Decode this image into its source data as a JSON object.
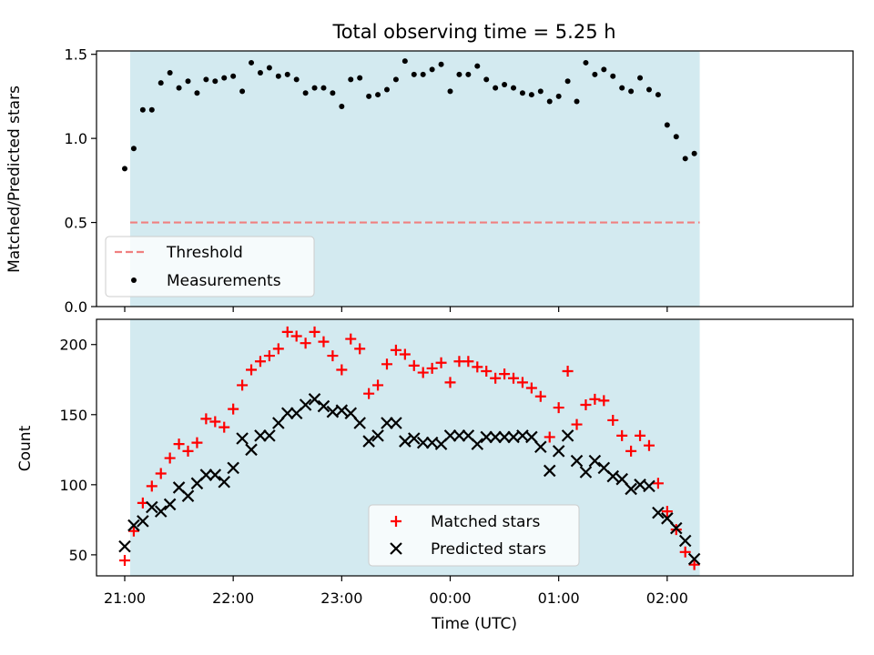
{
  "chart_data": {
    "title": "Total observing time = 5.25 h",
    "xlabel": "Time (UTC)",
    "x_ticks": [
      "21:00",
      "22:00",
      "23:00",
      "00:00",
      "01:00",
      "02:00"
    ],
    "observing_window": {
      "start": "21:03",
      "end": "02:18"
    },
    "colors": {
      "band": "#d3eaf0",
      "threshold": "#f08080",
      "measurements": "#000000",
      "matched": "#ff0000",
      "predicted": "#000000"
    },
    "panels": [
      {
        "type": "scatter",
        "ylabel": "Matched/Predicted stars",
        "ylim": [
          0,
          1.52
        ],
        "y_ticks": [
          "0.0",
          "0.5",
          "1.0",
          "1.5"
        ],
        "threshold": {
          "name": "Threshold",
          "value": 0.5
        },
        "legend": {
          "position": "lower-left",
          "entries": [
            "Threshold",
            "Measurements"
          ]
        },
        "series": [
          {
            "name": "Measurements",
            "x": [
              "21:00",
              "21:05",
              "21:10",
              "21:15",
              "21:20",
              "21:25",
              "21:30",
              "21:35",
              "21:40",
              "21:45",
              "21:50",
              "21:55",
              "22:00",
              "22:05",
              "22:10",
              "22:15",
              "22:20",
              "22:25",
              "22:30",
              "22:35",
              "22:40",
              "22:45",
              "22:50",
              "22:55",
              "23:00",
              "23:05",
              "23:10",
              "23:15",
              "23:20",
              "23:25",
              "23:30",
              "23:35",
              "23:40",
              "23:45",
              "23:50",
              "23:55",
              "00:00",
              "00:05",
              "00:10",
              "00:15",
              "00:20",
              "00:25",
              "00:30",
              "00:35",
              "00:40",
              "00:45",
              "00:50",
              "00:55",
              "01:00",
              "01:05",
              "01:10",
              "01:15",
              "01:20",
              "01:25",
              "01:30",
              "01:35",
              "01:40",
              "01:45",
              "01:50",
              "01:55",
              "02:00",
              "02:05",
              "02:10",
              "02:15"
            ],
            "y": [
              0.82,
              0.94,
              1.17,
              1.17,
              1.33,
              1.39,
              1.3,
              1.34,
              1.27,
              1.35,
              1.34,
              1.36,
              1.37,
              1.28,
              1.45,
              1.39,
              1.42,
              1.37,
              1.38,
              1.35,
              1.27,
              1.3,
              1.3,
              1.27,
              1.19,
              1.35,
              1.36,
              1.25,
              1.26,
              1.29,
              1.35,
              1.46,
              1.38,
              1.38,
              1.41,
              1.44,
              1.28,
              1.38,
              1.38,
              1.43,
              1.35,
              1.3,
              1.32,
              1.3,
              1.27,
              1.26,
              1.28,
              1.22,
              1.25,
              1.34,
              1.22,
              1.45,
              1.38,
              1.41,
              1.37,
              1.3,
              1.28,
              1.36,
              1.29,
              1.26,
              1.08,
              1.01,
              0.88,
              0.91
            ]
          }
        ]
      },
      {
        "type": "scatter",
        "ylabel": "Count",
        "ylim": [
          35,
          218
        ],
        "y_ticks": [
          "50",
          "100",
          "150",
          "200"
        ],
        "legend": {
          "position": "lower-center",
          "entries": [
            "Matched stars",
            "Predicted stars"
          ]
        },
        "series": [
          {
            "name": "Matched stars",
            "x": [
              "21:00",
              "21:05",
              "21:10",
              "21:15",
              "21:20",
              "21:25",
              "21:30",
              "21:35",
              "21:40",
              "21:45",
              "21:50",
              "21:55",
              "22:00",
              "22:05",
              "22:10",
              "22:15",
              "22:20",
              "22:25",
              "22:30",
              "22:35",
              "22:40",
              "22:45",
              "22:50",
              "22:55",
              "23:00",
              "23:05",
              "23:10",
              "23:15",
              "23:20",
              "23:25",
              "23:30",
              "23:35",
              "23:40",
              "23:45",
              "23:50",
              "23:55",
              "00:00",
              "00:05",
              "00:10",
              "00:15",
              "00:20",
              "00:25",
              "00:30",
              "00:35",
              "00:40",
              "00:45",
              "00:50",
              "00:55",
              "01:00",
              "01:05",
              "01:10",
              "01:15",
              "01:20",
              "01:25",
              "01:30",
              "01:35",
              "01:40",
              "01:45",
              "01:50",
              "01:55",
              "02:00",
              "02:05",
              "02:10",
              "02:15"
            ],
            "y": [
              46,
              67,
              87,
              99,
              108,
              119,
              129,
              124,
              130,
              147,
              145,
              141,
              154,
              171,
              182,
              188,
              192,
              197,
              209,
              206,
              201,
              209,
              202,
              192,
              182,
              204,
              197,
              165,
              171,
              186,
              196,
              193,
              185,
              180,
              183,
              187,
              173,
              188,
              188,
              184,
              181,
              176,
              179,
              176,
              173,
              169,
              163,
              134,
              155,
              181,
              143,
              157,
              161,
              160,
              146,
              135,
              124,
              135,
              128,
              101,
              81,
              68,
              52,
              43
            ]
          },
          {
            "name": "Predicted stars",
            "x": [
              "21:00",
              "21:05",
              "21:10",
              "21:15",
              "21:20",
              "21:25",
              "21:30",
              "21:35",
              "21:40",
              "21:45",
              "21:50",
              "21:55",
              "22:00",
              "22:05",
              "22:10",
              "22:15",
              "22:20",
              "22:25",
              "22:30",
              "22:35",
              "22:40",
              "22:45",
              "22:50",
              "22:55",
              "23:00",
              "23:05",
              "23:10",
              "23:15",
              "23:20",
              "23:25",
              "23:30",
              "23:35",
              "23:40",
              "23:45",
              "23:50",
              "23:55",
              "00:00",
              "00:05",
              "00:10",
              "00:15",
              "00:20",
              "00:25",
              "00:30",
              "00:35",
              "00:40",
              "00:45",
              "00:50",
              "00:55",
              "01:00",
              "01:05",
              "01:10",
              "01:15",
              "01:20",
              "01:25",
              "01:30",
              "01:35",
              "01:40",
              "01:45",
              "01:50",
              "01:55",
              "02:00",
              "02:05",
              "02:10",
              "02:15"
            ],
            "y": [
              56,
              71,
              74,
              84,
              81,
              86,
              98,
              92,
              101,
              107,
              107,
              102,
              112,
              133,
              125,
              135,
              135,
              144,
              151,
              151,
              157,
              161,
              156,
              152,
              153,
              151,
              144,
              131,
              135,
              144,
              144,
              131,
              133,
              130,
              130,
              129,
              135,
              135,
              135,
              129,
              134,
              134,
              134,
              134,
              135,
              134,
              127,
              110,
              124,
              135,
              117,
              109,
              117,
              112,
              106,
              104,
              97,
              100,
              99,
              80,
              76,
              69,
              60,
              47
            ]
          }
        ]
      }
    ]
  }
}
